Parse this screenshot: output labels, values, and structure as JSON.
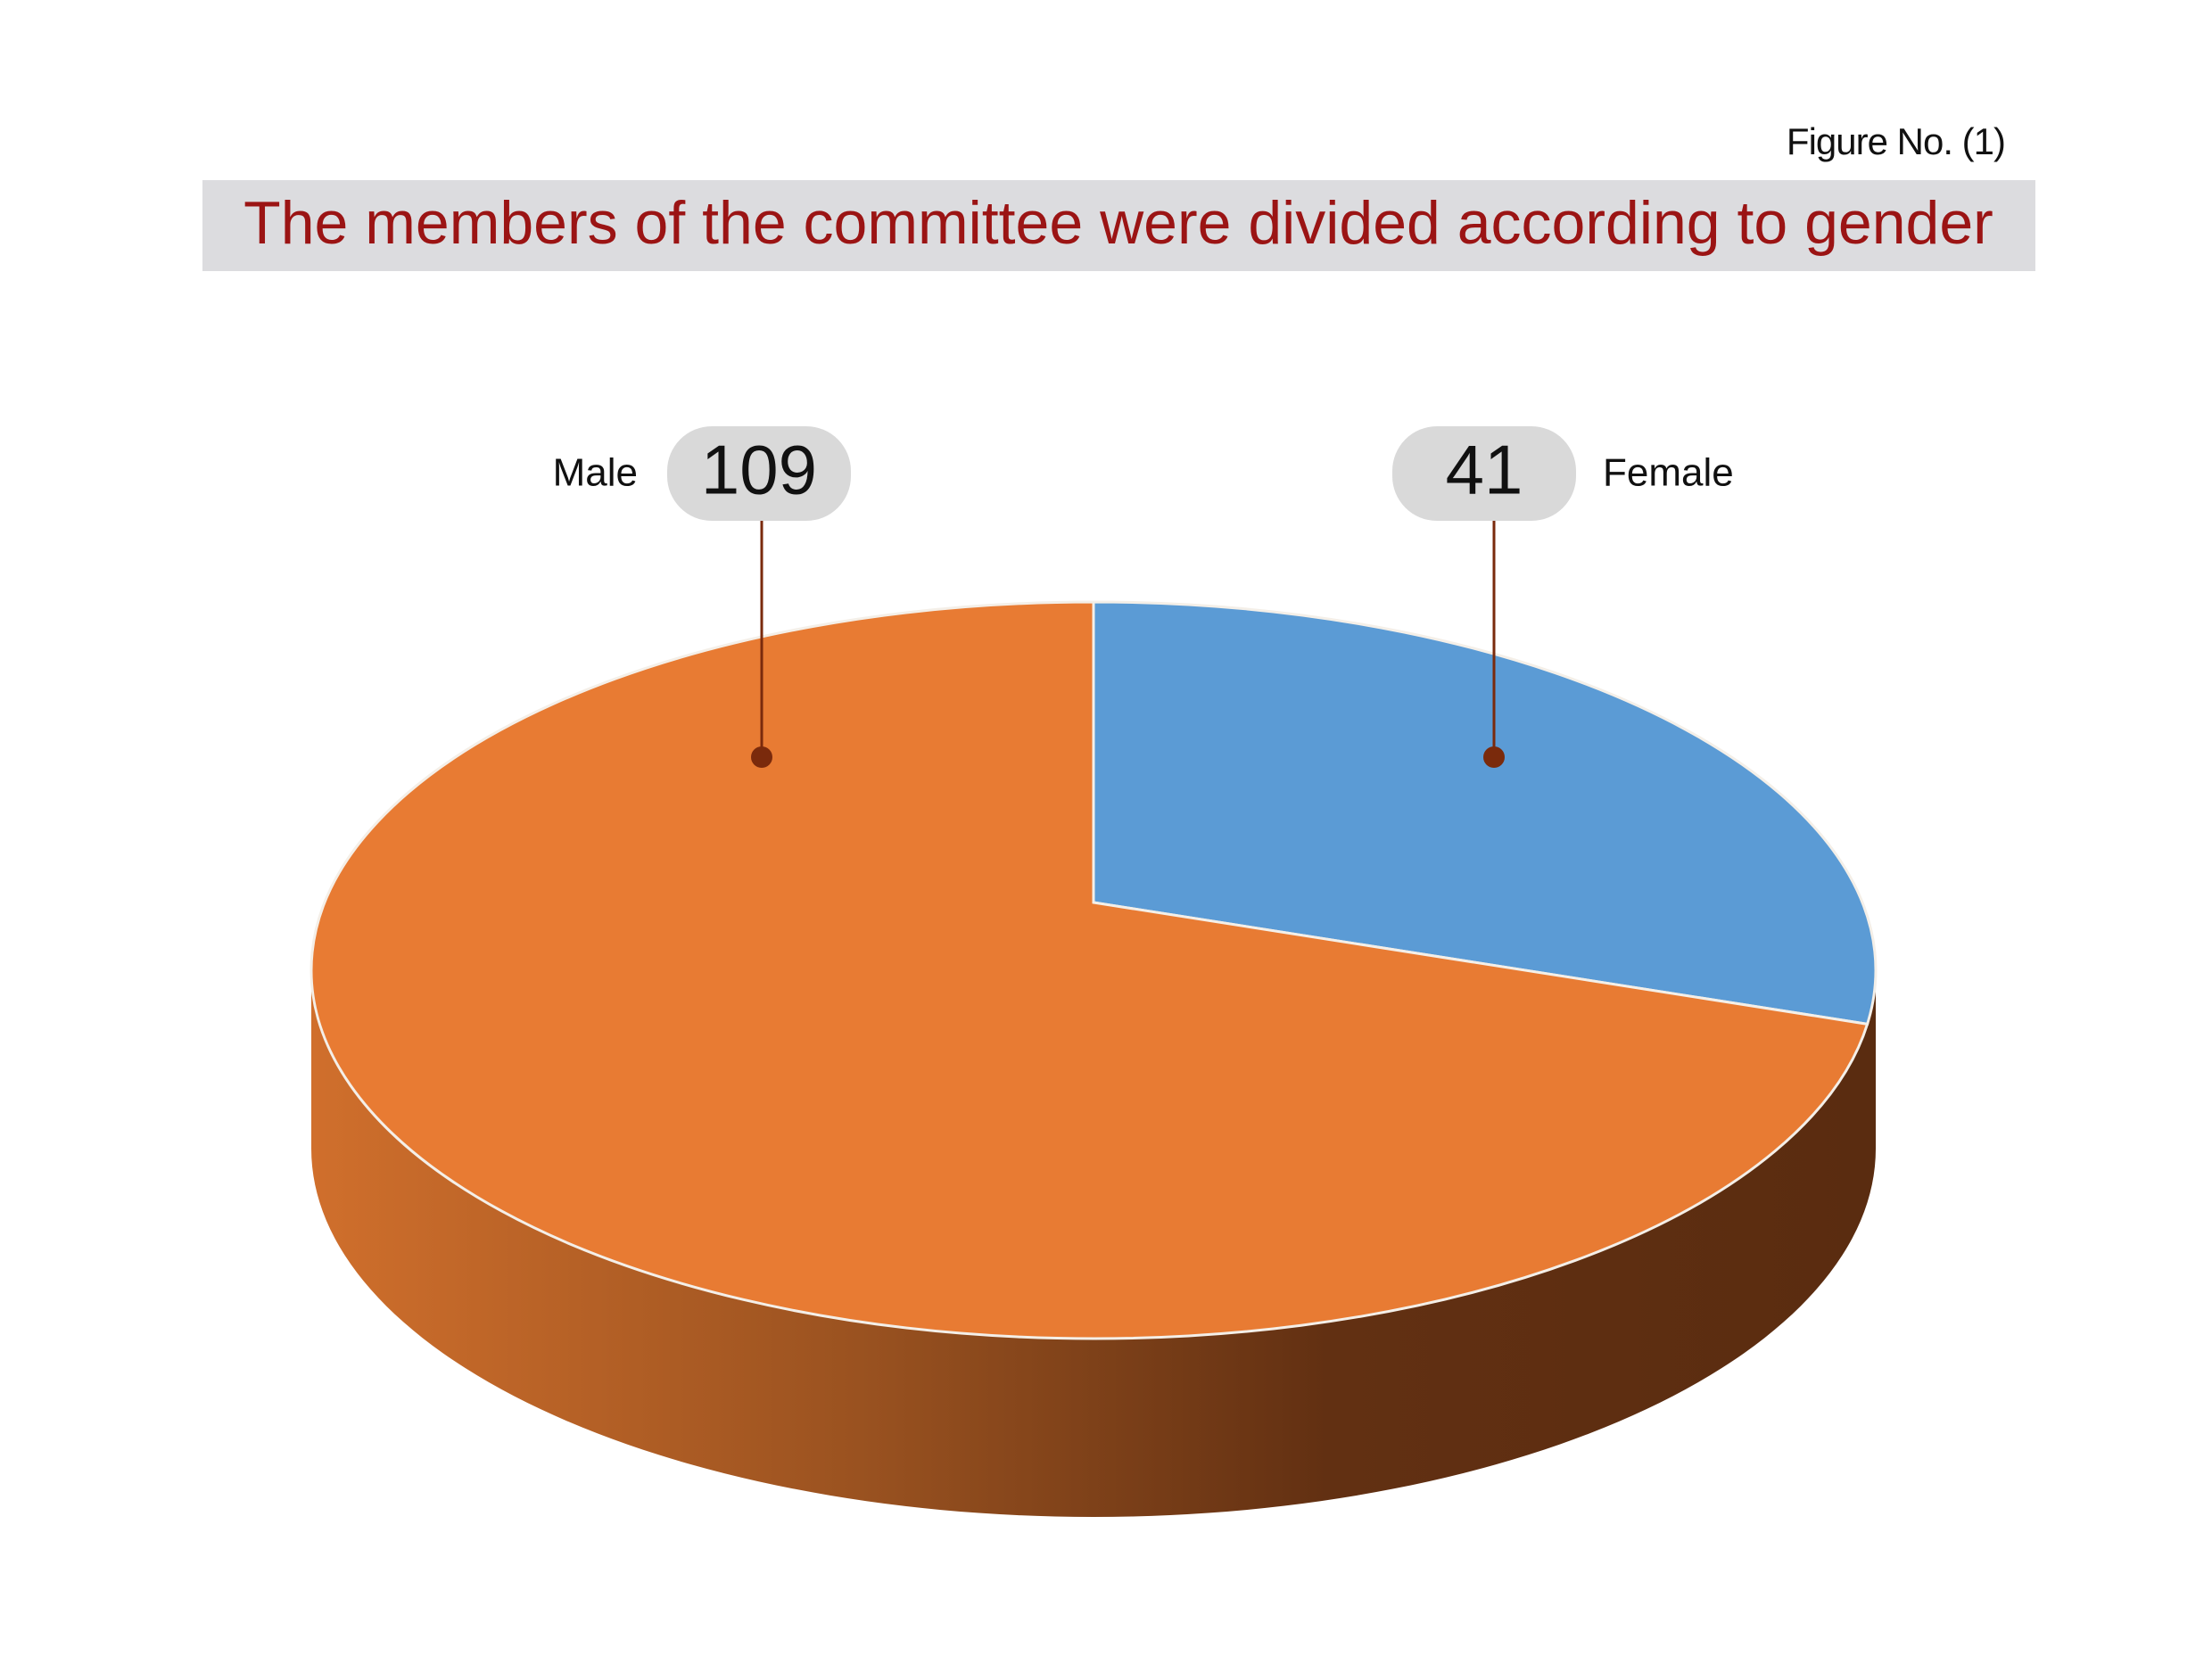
{
  "chart_data": {
    "type": "pie",
    "figure_label": "Figure No. (1)",
    "title": "The members of the committee were divided according to gender",
    "categories": [
      "Male",
      "Female"
    ],
    "values": [
      109,
      41
    ],
    "colors": [
      "#e87b33",
      "#5b9bd5"
    ]
  }
}
